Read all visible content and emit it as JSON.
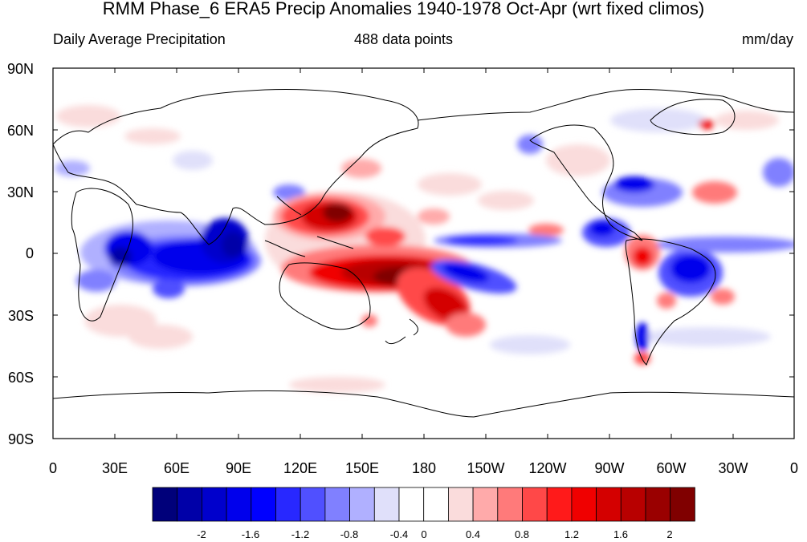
{
  "figure": {
    "title": "RMM Phase_6 ERA5 Precip Anomalies 1940-1978 Oct-Apr (wrt fixed climos)",
    "left_label": "Daily Average Precipitation",
    "center_label": "488 data points",
    "right_label": "mm/day"
  },
  "axes": {
    "lat_labels": [
      "90N",
      "60N",
      "30N",
      "0",
      "30S",
      "60S",
      "90S"
    ],
    "lon_labels": [
      "0",
      "30E",
      "60E",
      "90E",
      "120E",
      "150E",
      "180",
      "150W",
      "120W",
      "90W",
      "60W",
      "30W",
      "0"
    ]
  },
  "colorbar": {
    "tick_labels": [
      "-2",
      "-1.6",
      "-1.2",
      "-0.8",
      "-0.4",
      "0",
      "0.4",
      "0.8",
      "1.2",
      "1.6",
      "2"
    ],
    "colors": [
      "#00007a",
      "#0000a8",
      "#0000cc",
      "#0000ec",
      "#0000ff",
      "#2828ff",
      "#5050ff",
      "#8080ff",
      "#b0b0ff",
      "#e0e0fa",
      "#ffffff",
      "#ffffff",
      "#fadcdc",
      "#ffaaaa",
      "#ff7a7a",
      "#ff4848",
      "#ff1a1a",
      "#f00000",
      "#d40000",
      "#b80000",
      "#9a0000",
      "#800000"
    ]
  }
}
